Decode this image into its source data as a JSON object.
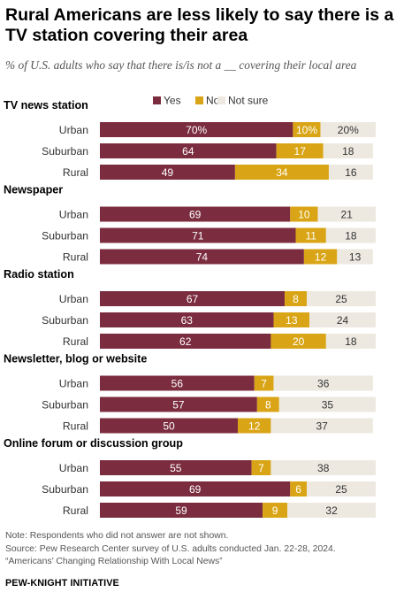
{
  "title": "Rural Americans are less likely to say there is a TV station covering their area",
  "subtitle": "% of U.S. adults who say that there is/is not a __ covering their local area",
  "notes": [
    "Note: Respondents who did not answer are not shown.",
    "Source: Pew Research Center survey of U.S. adults conducted Jan. 22-28, 2024.",
    "“Americans’ Changing Relationship With Local News”"
  ],
  "org": "PEW-KNIGHT INITIATIVE",
  "colors": {
    "yes": "#7b2d3f",
    "no": "#d9a516",
    "not_sure": "#ede9e1"
  },
  "chart_data": {
    "type": "bar",
    "orientation": "horizontal",
    "stacked": true,
    "xlim": [
      0,
      100
    ],
    "grid": false,
    "legend": {
      "position": "top",
      "entries": [
        "Yes",
        "No",
        "Not sure"
      ]
    },
    "series_names": [
      "Yes",
      "No",
      "Not sure"
    ],
    "groups": [
      {
        "name": "TV news station",
        "rows": [
          {
            "label": "Urban",
            "values": [
              70,
              10,
              20
            ],
            "labels": [
              "70%",
              "10%",
              "20%"
            ]
          },
          {
            "label": "Suburban",
            "values": [
              64,
              17,
              18
            ],
            "labels": [
              "64",
              "17",
              "18"
            ]
          },
          {
            "label": "Rural",
            "values": [
              49,
              34,
              16
            ],
            "labels": [
              "49",
              "34",
              "16"
            ]
          }
        ]
      },
      {
        "name": "Newspaper",
        "rows": [
          {
            "label": "Urban",
            "values": [
              69,
              10,
              21
            ],
            "labels": [
              "69",
              "10",
              "21"
            ]
          },
          {
            "label": "Suburban",
            "values": [
              71,
              11,
              18
            ],
            "labels": [
              "71",
              "11",
              "18"
            ]
          },
          {
            "label": "Rural",
            "values": [
              74,
              12,
              13
            ],
            "labels": [
              "74",
              "12",
              "13"
            ]
          }
        ]
      },
      {
        "name": "Radio station",
        "rows": [
          {
            "label": "Urban",
            "values": [
              67,
              8,
              25
            ],
            "labels": [
              "67",
              "8",
              "25"
            ]
          },
          {
            "label": "Suburban",
            "values": [
              63,
              13,
              24
            ],
            "labels": [
              "63",
              "13",
              "24"
            ]
          },
          {
            "label": "Rural",
            "values": [
              62,
              20,
              18
            ],
            "labels": [
              "62",
              "20",
              "18"
            ]
          }
        ]
      },
      {
        "name": "Newsletter, blog or website",
        "rows": [
          {
            "label": "Urban",
            "values": [
              56,
              7,
              36
            ],
            "labels": [
              "56",
              "7",
              "36"
            ]
          },
          {
            "label": "Suburban",
            "values": [
              57,
              8,
              35
            ],
            "labels": [
              "57",
              "8",
              "35"
            ]
          },
          {
            "label": "Rural",
            "values": [
              50,
              12,
              37
            ],
            "labels": [
              "50",
              "12",
              "37"
            ]
          }
        ]
      },
      {
        "name": "Online forum or discussion group",
        "rows": [
          {
            "label": "Urban",
            "values": [
              55,
              7,
              38
            ],
            "labels": [
              "55",
              "7",
              "38"
            ]
          },
          {
            "label": "Suburban",
            "values": [
              69,
              6,
              25
            ],
            "labels": [
              "69",
              "6",
              "25"
            ]
          },
          {
            "label": "Rural",
            "values": [
              59,
              9,
              32
            ],
            "labels": [
              "59",
              "9",
              "32"
            ]
          }
        ]
      }
    ]
  }
}
